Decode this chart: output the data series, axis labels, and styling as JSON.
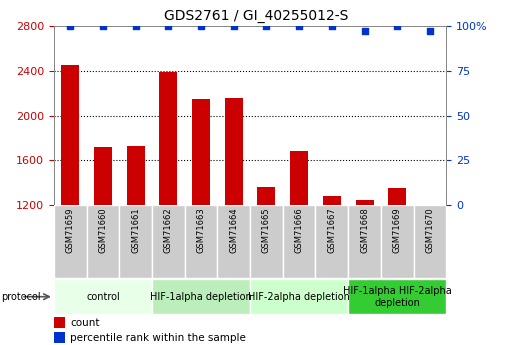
{
  "title": "GDS2761 / GI_40255012-S",
  "samples": [
    "GSM71659",
    "GSM71660",
    "GSM71661",
    "GSM71662",
    "GSM71663",
    "GSM71664",
    "GSM71665",
    "GSM71666",
    "GSM71667",
    "GSM71668",
    "GSM71669",
    "GSM71670"
  ],
  "counts": [
    2450,
    1720,
    1730,
    2390,
    2150,
    2160,
    1360,
    1680,
    1280,
    1250,
    1350,
    1205
  ],
  "percentile_ranks": [
    100,
    100,
    100,
    100,
    100,
    100,
    100,
    100,
    100,
    97,
    100,
    97
  ],
  "ylim_left": [
    1200,
    2800
  ],
  "ylim_right": [
    0,
    100
  ],
  "yticks_left": [
    1200,
    1600,
    2000,
    2400,
    2800
  ],
  "yticks_right": [
    0,
    25,
    50,
    75,
    100
  ],
  "bar_color": "#cc0000",
  "dot_color": "#0033cc",
  "protocol_groups": [
    {
      "label": "control",
      "indices": [
        0,
        1,
        2
      ],
      "color": "#e8ffe8"
    },
    {
      "label": "HIF-1alpha depletion",
      "indices": [
        3,
        4,
        5
      ],
      "color": "#bbeebb"
    },
    {
      "label": "HIF-2alpha depletion",
      "indices": [
        6,
        7,
        8
      ],
      "color": "#ccffcc"
    },
    {
      "label": "HIF-1alpha HIF-2alpha\ndepletion",
      "indices": [
        9,
        10,
        11
      ],
      "color": "#33cc33"
    }
  ],
  "sample_bg_color": "#cccccc",
  "sample_border_color": "#ffffff",
  "plot_bg": "#ffffff",
  "spine_color": "#000000",
  "grid_color": "#000000",
  "title_fontsize": 10,
  "tick_fontsize": 8,
  "sample_fontsize": 6,
  "protocol_fontsize": 7,
  "legend_fontsize": 7.5
}
